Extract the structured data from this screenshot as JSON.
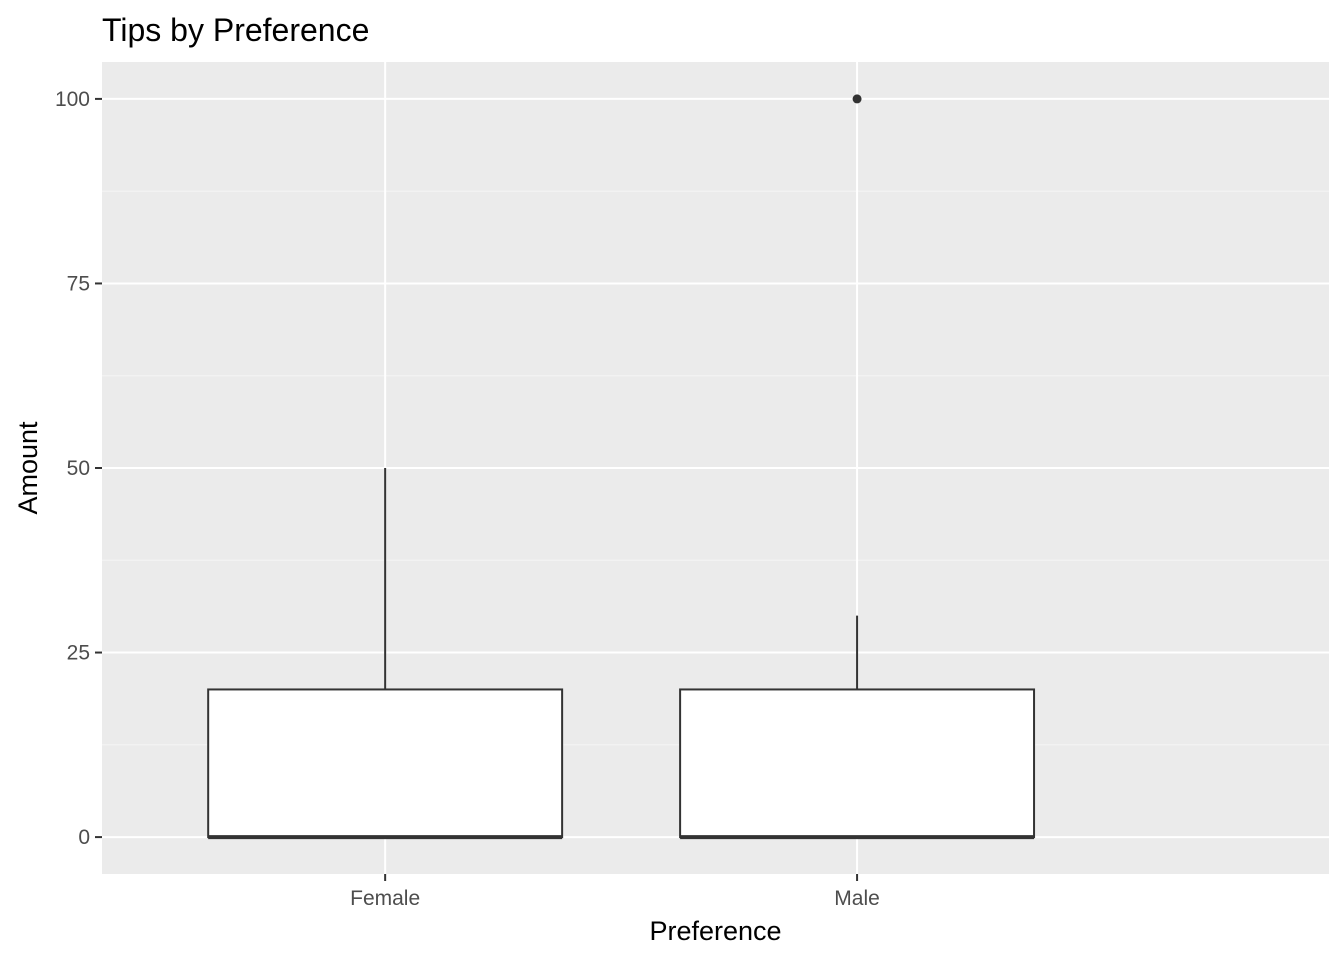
{
  "chart_data": {
    "type": "boxplot",
    "title": "Tips by Preference",
    "xlabel": "Preference",
    "ylabel": "Amount",
    "categories": [
      "Female",
      "Male"
    ],
    "ylim": [
      -5,
      105
    ],
    "yticks": [
      0,
      25,
      50,
      75,
      100
    ],
    "ytick_labels": [
      "0",
      "25",
      "50",
      "75",
      "100"
    ],
    "grid": true,
    "boxes": [
      {
        "category": "Female",
        "lower_whisker": 0,
        "q1": 0,
        "median": 0,
        "q3": 20,
        "upper_whisker": 50,
        "outliers": []
      },
      {
        "category": "Male",
        "lower_whisker": 0,
        "q1": 0,
        "median": 0,
        "q3": 20,
        "upper_whisker": 30,
        "outliers": [
          100
        ]
      }
    ],
    "colors": {
      "panel_background": "#ebebeb",
      "grid_major": "#ffffff",
      "grid_minor": "#f5f5f5",
      "box_fill": "#ffffff",
      "box_outline": "#333333",
      "outlier_point": "#333333",
      "tick_label": "#4d4d4d",
      "tick_mark": "#333333"
    }
  }
}
